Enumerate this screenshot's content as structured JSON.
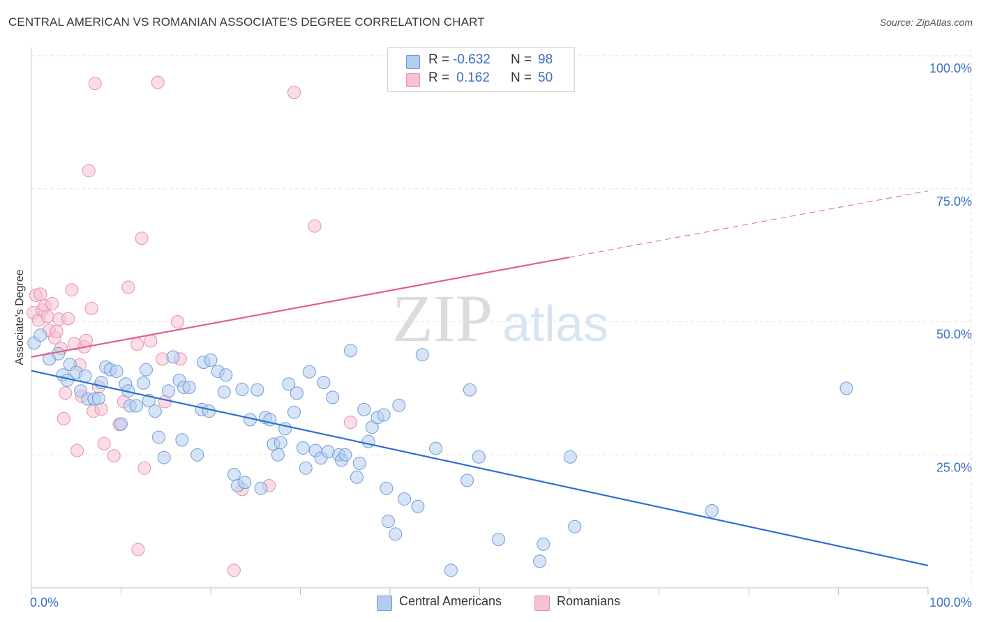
{
  "title": "CENTRAL AMERICAN VS ROMANIAN ASSOCIATE'S DEGREE CORRELATION CHART",
  "source": "Source: ZipAtlas.com",
  "watermark": {
    "zip": "ZIP",
    "atlas": "atlas"
  },
  "legend": {
    "rows": [
      {
        "r_label": "R =",
        "r_value": "-0.632",
        "n_label": "N =",
        "n_value": "98"
      },
      {
        "r_label": "R =",
        "r_value": " 0.162",
        "n_label": "N =",
        "n_value": "50"
      }
    ]
  },
  "colors": {
    "blue_fill": "#b4cdee",
    "blue_stroke": "#6f9bd8",
    "blue_line": "#2f6fd0",
    "pink_fill": "#f6c1d2",
    "pink_stroke": "#e88fac",
    "pink_line": "#e0618d",
    "axis_label": "#3a6fc4",
    "grid": "#e2e2e2"
  },
  "chart_data": {
    "type": "scatter",
    "title": "CENTRAL AMERICAN VS ROMANIAN ASSOCIATE'S DEGREE CORRELATION CHART",
    "xlabel": "",
    "ylabel": "Associate's Degree",
    "xlim": [
      0,
      100
    ],
    "ylim": [
      0,
      100
    ],
    "x_tick_labels": [
      "0.0%",
      "100.0%"
    ],
    "y_ticks": [
      25,
      50,
      75,
      100
    ],
    "y_tick_labels": [
      "25.0%",
      "50.0%",
      "75.0%",
      "100.0%"
    ],
    "legend_position": "bottom-center",
    "series": [
      {
        "name": "Central Americans",
        "r": -0.632,
        "n": 98,
        "trend": {
          "x0": 0,
          "y0": 40.8,
          "x1": 100,
          "y1": 4.2,
          "solid_until": 100
        },
        "points": [
          [
            0.3,
            46
          ],
          [
            1,
            47.5
          ],
          [
            2,
            43
          ],
          [
            3,
            44
          ],
          [
            3.5,
            40
          ],
          [
            4,
            39
          ],
          [
            4.3,
            42
          ],
          [
            5,
            40.5
          ],
          [
            5.5,
            37
          ],
          [
            6,
            39.8
          ],
          [
            6.3,
            35.5
          ],
          [
            7,
            35.5
          ],
          [
            7.5,
            35.6
          ],
          [
            7.8,
            38.6
          ],
          [
            8.3,
            41.5
          ],
          [
            8.8,
            41
          ],
          [
            9.5,
            40.7
          ],
          [
            10,
            30.8
          ],
          [
            10.5,
            38.3
          ],
          [
            10.8,
            37
          ],
          [
            11,
            34.2
          ],
          [
            11.7,
            34.2
          ],
          [
            12.5,
            38.5
          ],
          [
            12.8,
            41
          ],
          [
            13.1,
            35.2
          ],
          [
            13.8,
            33.2
          ],
          [
            14.2,
            28.3
          ],
          [
            14.8,
            24.5
          ],
          [
            15.3,
            37
          ],
          [
            15.8,
            43.4
          ],
          [
            16.5,
            39
          ],
          [
            16.8,
            27.8
          ],
          [
            17,
            37.7
          ],
          [
            17.6,
            37.7
          ],
          [
            18.5,
            25
          ],
          [
            19,
            33.5
          ],
          [
            19.2,
            42.4
          ],
          [
            19.8,
            33.2
          ],
          [
            20,
            42.8
          ],
          [
            20.8,
            40.7
          ],
          [
            21.5,
            36.8
          ],
          [
            21.7,
            40
          ],
          [
            22.6,
            21.3
          ],
          [
            23,
            19.2
          ],
          [
            23.5,
            37.3
          ],
          [
            23.8,
            19.8
          ],
          [
            24.4,
            31.6
          ],
          [
            25.2,
            37.2
          ],
          [
            25.6,
            18.7
          ],
          [
            26.1,
            32
          ],
          [
            26.6,
            31.6
          ],
          [
            27,
            27
          ],
          [
            27.5,
            25
          ],
          [
            27.8,
            27.3
          ],
          [
            28.3,
            29.9
          ],
          [
            28.7,
            38.3
          ],
          [
            29.3,
            33
          ],
          [
            29.6,
            36.6
          ],
          [
            30.3,
            26.3
          ],
          [
            30.6,
            22.5
          ],
          [
            31,
            40.6
          ],
          [
            31.7,
            25.8
          ],
          [
            32.3,
            24.4
          ],
          [
            32.6,
            38.6
          ],
          [
            33.1,
            25.6
          ],
          [
            33.6,
            35.8
          ],
          [
            34.3,
            25
          ],
          [
            34.6,
            24
          ],
          [
            35,
            25
          ],
          [
            35.6,
            44.6
          ],
          [
            36.3,
            20.8
          ],
          [
            36.6,
            23.4
          ],
          [
            37.1,
            33.5
          ],
          [
            37.6,
            27.5
          ],
          [
            38,
            30.2
          ],
          [
            38.6,
            32
          ],
          [
            39.3,
            32.5
          ],
          [
            39.6,
            18.7
          ],
          [
            39.8,
            12.5
          ],
          [
            40.6,
            10.1
          ],
          [
            41,
            34.3
          ],
          [
            41.6,
            16.7
          ],
          [
            43.1,
            15.3
          ],
          [
            43.6,
            43.8
          ],
          [
            45.1,
            26.2
          ],
          [
            46.8,
            3.3
          ],
          [
            48.6,
            20.2
          ],
          [
            48.9,
            37.2
          ],
          [
            49.9,
            24.6
          ],
          [
            52.1,
            9.1
          ],
          [
            56.7,
            5
          ],
          [
            57.1,
            8.2
          ],
          [
            60.1,
            24.6
          ],
          [
            60.6,
            11.5
          ],
          [
            75.9,
            14.5
          ],
          [
            90.9,
            37.5
          ]
        ]
      },
      {
        "name": "Romanians",
        "r": 0.162,
        "n": 50,
        "trend": {
          "x0": 0,
          "y0": 43.4,
          "x1": 100,
          "y1": 74.6,
          "solid_until": 60
        },
        "points": [
          [
            0.2,
            51.7
          ],
          [
            0.5,
            55
          ],
          [
            0.8,
            50.3
          ],
          [
            1,
            55.2
          ],
          [
            1.2,
            52.2
          ],
          [
            1.5,
            53
          ],
          [
            1.8,
            51
          ],
          [
            2,
            48.4
          ],
          [
            2.3,
            53.4
          ],
          [
            2.6,
            47
          ],
          [
            2.8,
            48.2
          ],
          [
            3.1,
            50.5
          ],
          [
            3.3,
            45
          ],
          [
            3.6,
            31.8
          ],
          [
            3.8,
            36.6
          ],
          [
            4.1,
            50.6
          ],
          [
            4.5,
            56
          ],
          [
            4.8,
            45.9
          ],
          [
            5.1,
            25.8
          ],
          [
            5.4,
            41.9
          ],
          [
            5.6,
            36
          ],
          [
            5.9,
            45.3
          ],
          [
            6.1,
            46.5
          ],
          [
            6.4,
            78.4
          ],
          [
            6.7,
            52.5
          ],
          [
            6.9,
            33.2
          ],
          [
            7.1,
            94.8
          ],
          [
            7.5,
            37.8
          ],
          [
            7.8,
            33.6
          ],
          [
            8.1,
            27.1
          ],
          [
            9.2,
            24.8
          ],
          [
            9.8,
            30.7
          ],
          [
            10.3,
            35
          ],
          [
            10.8,
            56.5
          ],
          [
            11.8,
            45.8
          ],
          [
            11.9,
            7.2
          ],
          [
            12.3,
            65.7
          ],
          [
            12.6,
            22.5
          ],
          [
            13.3,
            46.4
          ],
          [
            14.1,
            95
          ],
          [
            14.6,
            43
          ],
          [
            14.9,
            35
          ],
          [
            16.3,
            50
          ],
          [
            16.6,
            43
          ],
          [
            22.6,
            3.3
          ],
          [
            23.5,
            18.5
          ],
          [
            26.5,
            19.2
          ],
          [
            29.3,
            93.1
          ],
          [
            31.6,
            68
          ],
          [
            35.6,
            31.1
          ]
        ]
      }
    ]
  }
}
